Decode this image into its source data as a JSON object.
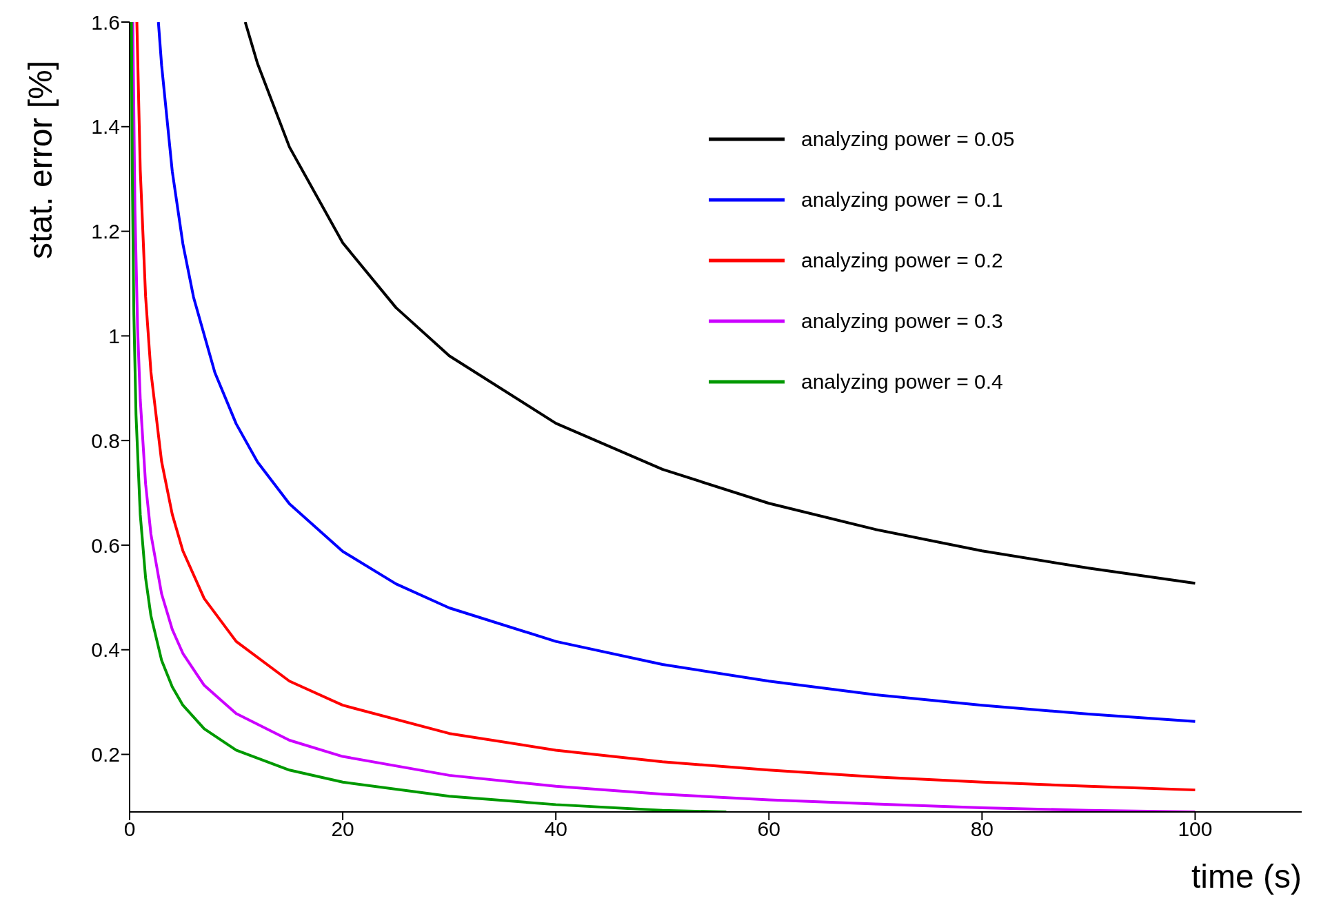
{
  "chart_data": {
    "type": "line",
    "xlabel": "time (s)",
    "ylabel": "stat. error [%]",
    "xlim": [
      0,
      110
    ],
    "xticks": [
      0,
      20,
      40,
      60,
      80,
      100
    ],
    "ylim": [
      0.09,
      1.6
    ],
    "yticks": [
      0.2,
      0.4,
      0.6,
      0.8,
      1,
      1.2,
      1.4,
      1.6
    ],
    "legend": "top right",
    "marker": "none",
    "line_style": "solid",
    "grid": false,
    "series": [
      {
        "name": "analyzing power = 0.05",
        "color": "#000000",
        "x": [
          10.85,
          12,
          15,
          20,
          25,
          30,
          40,
          50,
          60,
          70,
          80,
          90,
          100
        ],
        "values": [
          1.6,
          1.521,
          1.361,
          1.178,
          1.054,
          0.962,
          0.833,
          0.745,
          0.68,
          0.63,
          0.589,
          0.556,
          0.527
        ]
      },
      {
        "name": "analyzing power = 0.1",
        "color": "#0000ff",
        "x": [
          2.7,
          3,
          4,
          5,
          6,
          8,
          10,
          12,
          15,
          20,
          25,
          30,
          40,
          50,
          60,
          70,
          80,
          90,
          100
        ],
        "values": [
          1.6,
          1.518,
          1.315,
          1.176,
          1.074,
          0.93,
          0.832,
          0.759,
          0.679,
          0.588,
          0.526,
          0.48,
          0.416,
          0.372,
          0.34,
          0.314,
          0.294,
          0.277,
          0.263
        ]
      },
      {
        "name": "analyzing power = 0.2",
        "color": "#ff0000",
        "x": [
          0.68,
          1,
          1.5,
          2,
          3,
          4,
          5,
          7,
          10,
          15,
          20,
          30,
          40,
          50,
          60,
          70,
          80,
          90,
          100
        ],
        "values": [
          1.6,
          1.317,
          1.075,
          0.931,
          0.76,
          0.659,
          0.589,
          0.498,
          0.416,
          0.34,
          0.294,
          0.24,
          0.208,
          0.186,
          0.17,
          0.157,
          0.147,
          0.139,
          0.132
        ]
      },
      {
        "name": "analyzing power = 0.3",
        "color": "#cc00ff",
        "x": [
          0.3,
          0.5,
          0.75,
          1,
          1.5,
          2,
          3,
          4,
          5,
          7,
          10,
          15,
          20,
          30,
          40,
          50,
          60,
          70,
          80,
          90,
          100
        ],
        "values": [
          1.6,
          1.242,
          1.014,
          0.878,
          0.717,
          0.621,
          0.507,
          0.439,
          0.393,
          0.332,
          0.278,
          0.227,
          0.196,
          0.16,
          0.139,
          0.124,
          0.113,
          0.105,
          0.098,
          0.093,
          0.09
        ]
      },
      {
        "name": "analyzing power = 0.4",
        "color": "#009900",
        "x": [
          0.17,
          0.25,
          0.4,
          0.6,
          1,
          1.5,
          2,
          3,
          4,
          5,
          7,
          10,
          15,
          20,
          30,
          40,
          50,
          56
        ],
        "values": [
          1.6,
          1.316,
          1.04,
          0.849,
          0.658,
          0.537,
          0.465,
          0.38,
          0.329,
          0.294,
          0.249,
          0.208,
          0.17,
          0.147,
          0.12,
          0.104,
          0.093,
          0.09
        ]
      }
    ]
  }
}
